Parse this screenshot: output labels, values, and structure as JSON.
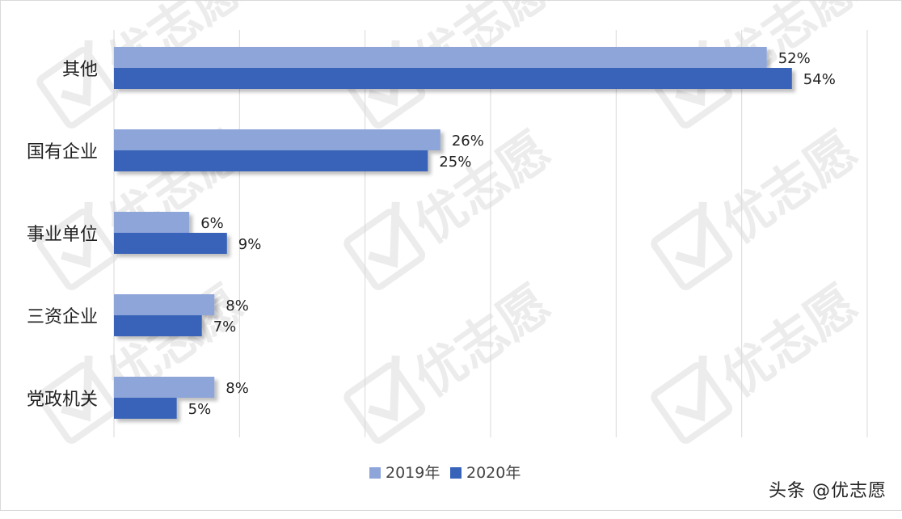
{
  "chart_data": {
    "type": "bar",
    "orientation": "horizontal",
    "categories": [
      "其他",
      "国有企业",
      "事业单位",
      "三资企业",
      "党政机关"
    ],
    "series": [
      {
        "name": "2019年",
        "values": [
          52,
          26,
          6,
          8,
          8
        ],
        "labels": [
          "52%",
          "26%",
          "6%",
          "8%",
          "8%"
        ],
        "color": "#8ea5da"
      },
      {
        "name": "2020年",
        "values": [
          54,
          25,
          9,
          7,
          5
        ],
        "labels": [
          "54%",
          "25%",
          "9%",
          "7%",
          "5%"
        ],
        "color": "#3763b8"
      }
    ],
    "xlim": [
      0,
      60
    ],
    "grid": true,
    "legend_position": "bottom",
    "title": "",
    "xlabel": "",
    "ylabel": ""
  },
  "watermark": {
    "brand": "优志愿",
    "caption": "头条 @优志愿"
  }
}
